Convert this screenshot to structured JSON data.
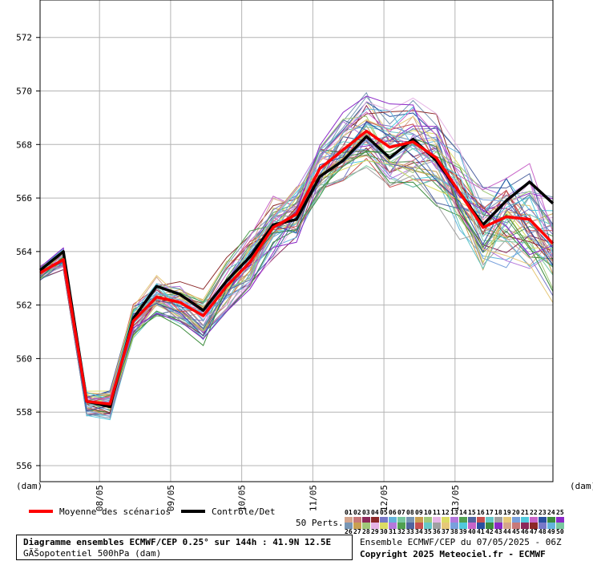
{
  "chart_data": {
    "type": "line",
    "yunit_left": "(dam)",
    "yunit_right": "(dam)",
    "ylim": [
      555.4,
      573.4
    ],
    "yticks": [
      556,
      558,
      560,
      562,
      564,
      566,
      568,
      570,
      572
    ],
    "xlim": [
      0,
      44
    ],
    "x": [
      0,
      2,
      4,
      6,
      8,
      10,
      12,
      14,
      16,
      18,
      20,
      22,
      24,
      26,
      28,
      30,
      32,
      34,
      36,
      38,
      40,
      42,
      44
    ],
    "x_ticks": [
      {
        "x": 5.1,
        "label": "08/05"
      },
      {
        "x": 11.2,
        "label": "09/05"
      },
      {
        "x": 17.3,
        "label": "10/05"
      },
      {
        "x": 23.4,
        "label": "11/05"
      },
      {
        "x": 29.5,
        "label": "12/05"
      },
      {
        "x": 35.6,
        "label": "13/05"
      }
    ],
    "grid": true,
    "mean": {
      "name": "Moyenne des scénarios",
      "color": "#ff0000",
      "values": [
        563.2,
        563.7,
        558.4,
        558.3,
        561.4,
        562.3,
        562.1,
        561.6,
        562.7,
        563.6,
        564.9,
        565.4,
        567.1,
        567.8,
        568.5,
        567.9,
        568.1,
        567.5,
        566.2,
        564.9,
        565.3,
        565.2,
        564.3
      ]
    },
    "control": {
      "name": "Contrôle/Det",
      "color": "#000000",
      "values": [
        563.3,
        564.0,
        558.4,
        558.2,
        561.5,
        562.7,
        562.4,
        561.8,
        562.9,
        563.8,
        565.0,
        565.2,
        566.8,
        567.4,
        568.3,
        567.5,
        568.2,
        567.4,
        566.2,
        565.0,
        565.9,
        566.6,
        565.8
      ]
    },
    "members_note": "50 perturbed ensemble members"
  },
  "legend": {
    "mean_label": "Moyenne des scénarios",
    "control_label": "Contrôle/Det",
    "perts_label": "50 Perts.",
    "member_colors": [
      "#d4a48c",
      "#c87878",
      "#8c285a",
      "#8c2828",
      "#7878c8",
      "#64b4dc",
      "#78c8a0",
      "#7896b4",
      "#c8a050",
      "#a0c878",
      "#e6b4e6",
      "#dcdc64",
      "#b478dc",
      "#50a050",
      "#5064a0",
      "#c85050",
      "#64c8c8",
      "#a0a0a0",
      "#e6c878",
      "#78a0dc",
      "#50c8dc",
      "#c864c8",
      "#2850a0",
      "#3c8c3c",
      "#8c28c8"
    ],
    "member_labels_top": [
      "01",
      "02",
      "03",
      "04",
      "05",
      "06",
      "07",
      "08",
      "09",
      "10",
      "11",
      "12",
      "13",
      "14",
      "15",
      "16",
      "17",
      "18",
      "19",
      "20",
      "21",
      "22",
      "23",
      "24",
      "25"
    ],
    "member_labels_bottom": [
      "26",
      "27",
      "28",
      "29",
      "30",
      "31",
      "32",
      "33",
      "34",
      "35",
      "36",
      "37",
      "38",
      "39",
      "40",
      "41",
      "42",
      "43",
      "44",
      "45",
      "46",
      "47",
      "48",
      "49",
      "50"
    ]
  },
  "info": {
    "line1": "Diagramme ensembles ECMWF/CEP 0.25° sur 144h : 41.9N 12.5E",
    "line2": "GÃŠopotentiel 500hPa (dam)",
    "right1": "Ensemble ECMWF/CEP du 07/05/2025 - 06Z",
    "right2": "Copyright 2025 Meteociel.fr - ECMWF"
  }
}
